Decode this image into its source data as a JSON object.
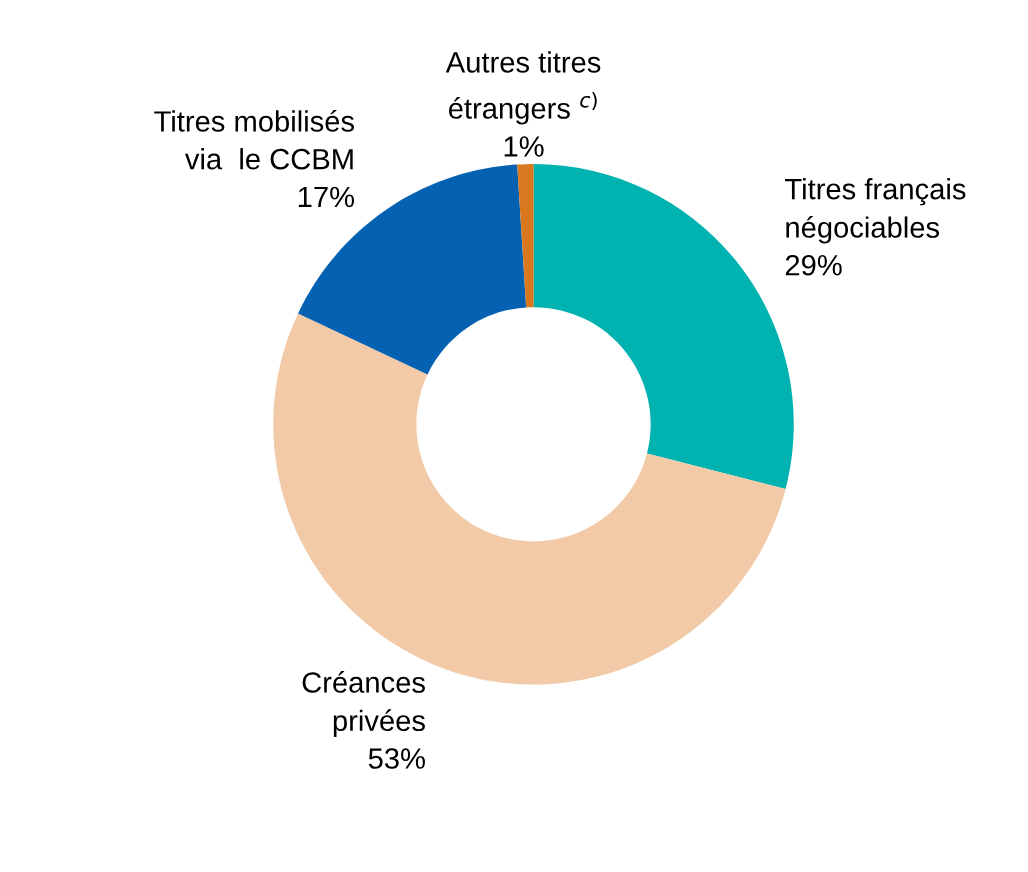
{
  "chart_data": {
    "type": "donut",
    "categories": [
      "Titres français\nnégociables",
      "Créances\nprivées",
      "Titres mobilisés\nvia  le CCBM",
      "Autres titres\nétrangers $^{c)}$"
    ],
    "values": [
      29,
      53,
      17,
      1
    ],
    "colors": [
      "#00b2b0",
      "#f2caa7",
      "#0562b3",
      "#d9781f"
    ],
    "value_labels": [
      "29%",
      "53%",
      "17%",
      "1%"
    ]
  }
}
